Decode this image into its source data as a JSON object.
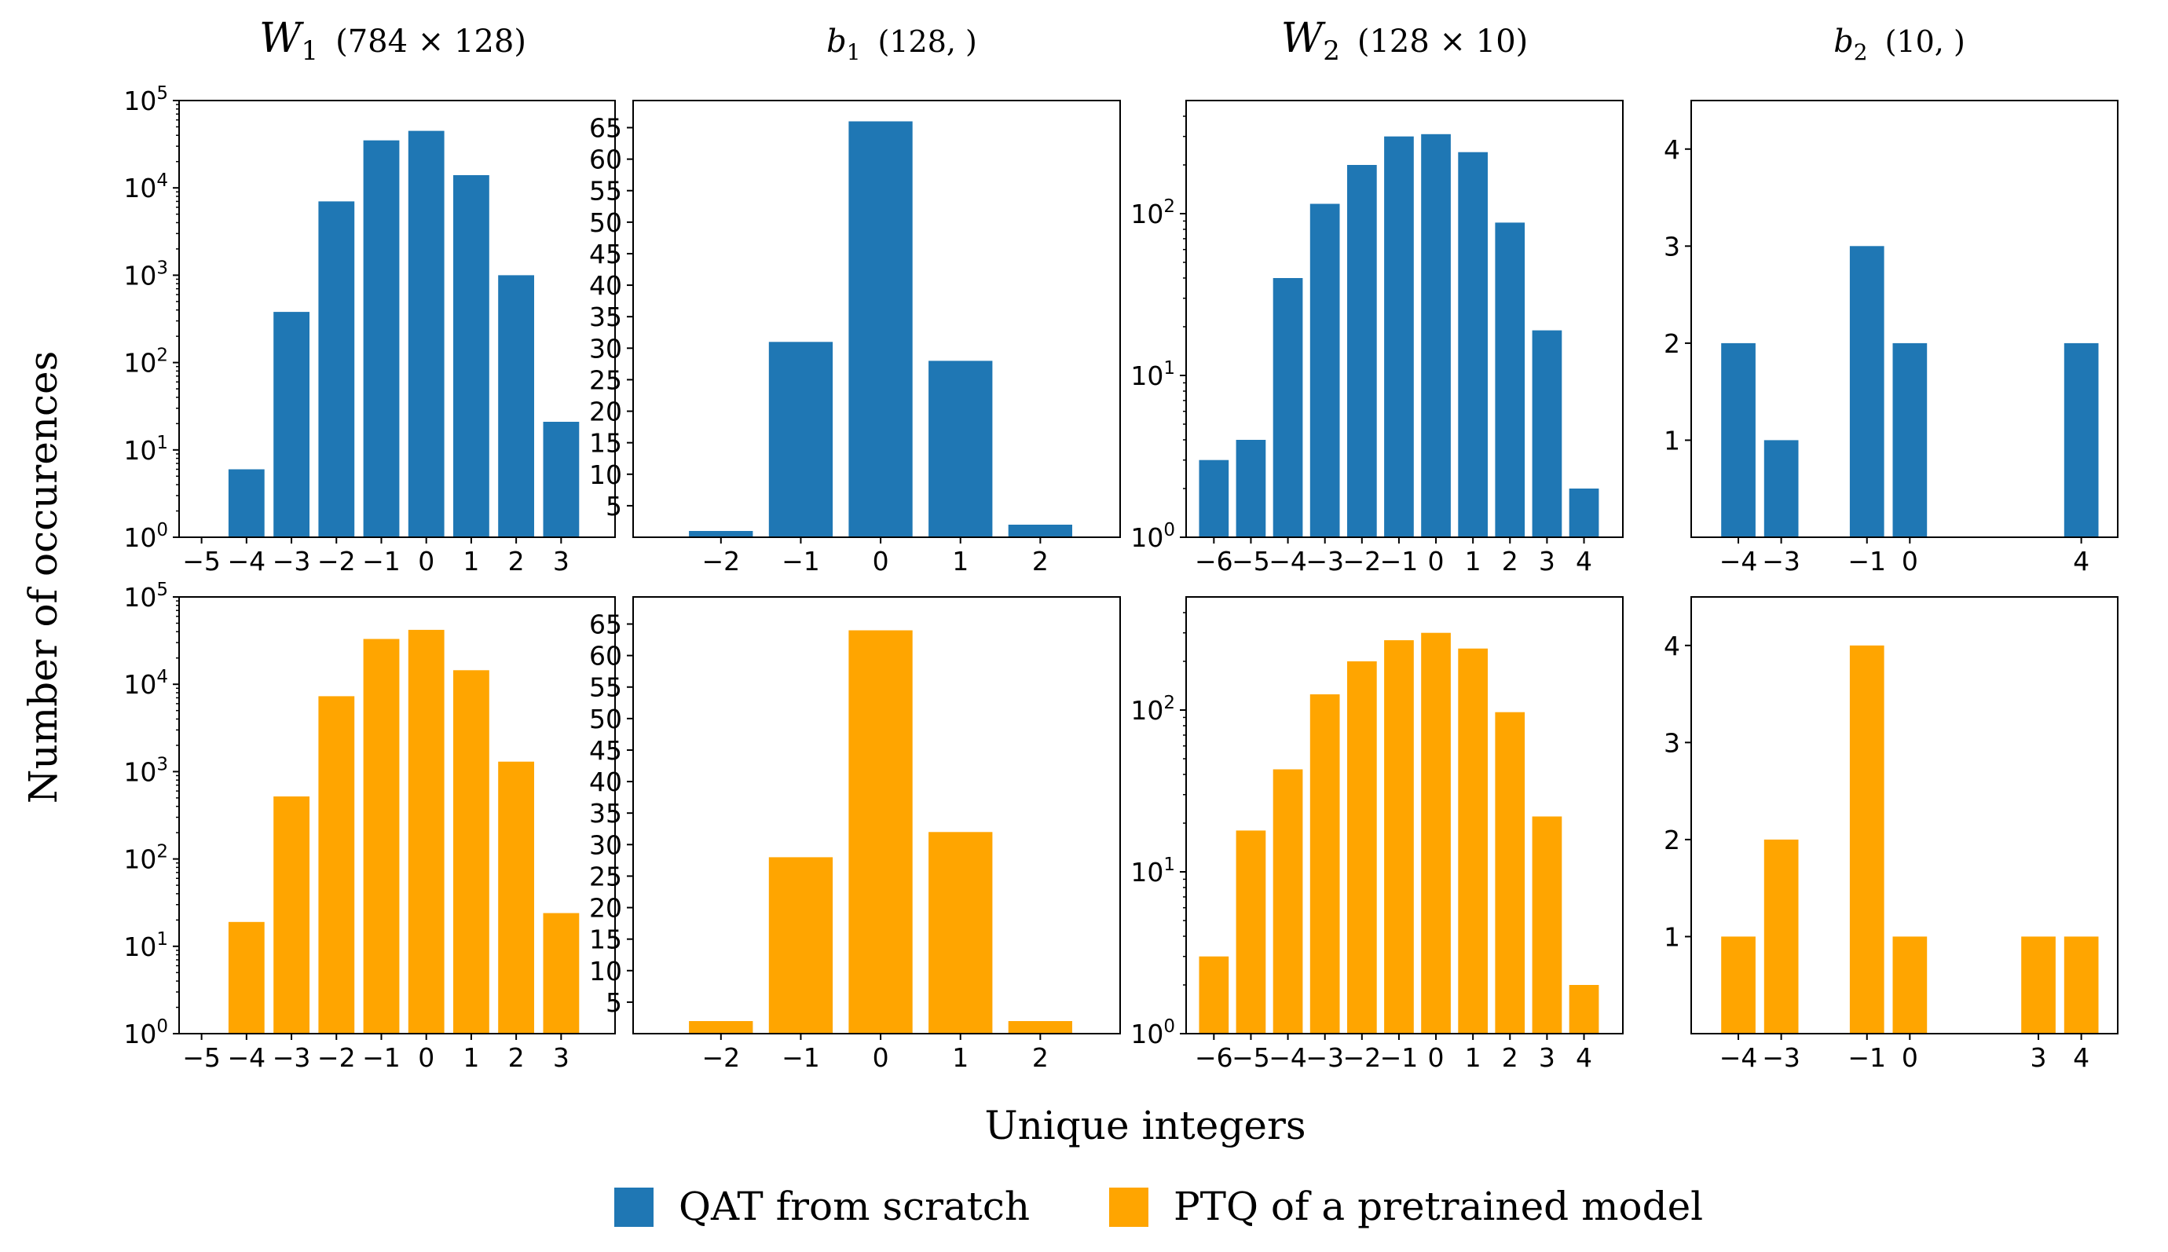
{
  "figure": {
    "ylabel": "Number of occurences",
    "xlabel": "Unique integers",
    "legend": [
      {
        "label": "QAT from scratch",
        "color": "#1f77b4"
      },
      {
        "label": "PTQ of a pretrained model",
        "color": "#ffa500"
      }
    ]
  },
  "columns": [
    {
      "title": {
        "var": "W",
        "sub": "1",
        "shape": "(784 × 128)",
        "big": true
      }
    },
    {
      "title": {
        "var": "b",
        "sub": "1",
        "shape": "(128, )",
        "big": false
      }
    },
    {
      "title": {
        "var": "W",
        "sub": "2",
        "shape": "(128 × 10)",
        "big": true
      }
    },
    {
      "title": {
        "var": "b",
        "sub": "2",
        "shape": "(10, )",
        "big": false
      }
    }
  ],
  "chart_data": [
    {
      "type": "bar",
      "panel": "W1-QAT",
      "row": 0,
      "col": 0,
      "series_name": "QAT from scratch",
      "color": "#1f77b4",
      "x": [
        -4,
        -3,
        -2,
        -1,
        0,
        1,
        2,
        3
      ],
      "values": [
        6,
        380,
        7000,
        35000,
        45000,
        14000,
        1000,
        21
      ],
      "xlim": [
        -5.5,
        4.2
      ],
      "ylim": [
        1,
        100000
      ],
      "yscale": "log",
      "xticks": [
        -5,
        -4,
        -3,
        -2,
        -1,
        0,
        1,
        2,
        3
      ],
      "yticks": [
        1,
        10,
        100,
        1000,
        10000,
        100000
      ]
    },
    {
      "type": "bar",
      "panel": "W1-PTQ",
      "row": 1,
      "col": 0,
      "series_name": "PTQ of a pretrained model",
      "color": "#ffa500",
      "x": [
        -4,
        -3,
        -2,
        -1,
        0,
        1,
        2,
        3
      ],
      "values": [
        19,
        520,
        7300,
        33000,
        42000,
        14500,
        1300,
        24
      ],
      "xlim": [
        -5.5,
        4.2
      ],
      "ylim": [
        1,
        100000
      ],
      "yscale": "log",
      "xticks": [
        -5,
        -4,
        -3,
        -2,
        -1,
        0,
        1,
        2,
        3
      ],
      "yticks": [
        1,
        10,
        100,
        1000,
        10000,
        100000
      ]
    },
    {
      "type": "bar",
      "panel": "b1-QAT",
      "row": 0,
      "col": 1,
      "series_name": "QAT from scratch",
      "color": "#1f77b4",
      "x": [
        -2,
        -1,
        0,
        1,
        2
      ],
      "values": [
        1,
        31,
        66,
        28,
        2
      ],
      "xlim": [
        -3.1,
        3.0
      ],
      "ylim": [
        0,
        69.3
      ],
      "yscale": "linear",
      "xticks": [
        -2,
        -1,
        0,
        1,
        2
      ],
      "yticks": [
        5,
        10,
        15,
        20,
        25,
        30,
        35,
        40,
        45,
        50,
        55,
        60,
        65
      ]
    },
    {
      "type": "bar",
      "panel": "b1-PTQ",
      "row": 1,
      "col": 1,
      "series_name": "PTQ of a pretrained model",
      "color": "#ffa500",
      "x": [
        -2,
        -1,
        0,
        1,
        2
      ],
      "values": [
        2,
        28,
        64,
        32,
        2
      ],
      "xlim": [
        -3.1,
        3.0
      ],
      "ylim": [
        0,
        69.3
      ],
      "yscale": "linear",
      "xticks": [
        -2,
        -1,
        0,
        1,
        2
      ],
      "yticks": [
        5,
        10,
        15,
        20,
        25,
        30,
        35,
        40,
        45,
        50,
        55,
        60,
        65
      ]
    },
    {
      "type": "bar",
      "panel": "W2-QAT",
      "row": 0,
      "col": 2,
      "series_name": "QAT from scratch",
      "color": "#1f77b4",
      "x": [
        -6,
        -5,
        -4,
        -3,
        -2,
        -1,
        0,
        1,
        2,
        3,
        4
      ],
      "values": [
        3,
        4,
        40,
        115,
        200,
        300,
        310,
        240,
        88,
        19,
        2
      ],
      "xlim": [
        -6.75,
        5.05
      ],
      "ylim": [
        1,
        500
      ],
      "yscale": "log",
      "xticks": [
        -6,
        -5,
        -4,
        -3,
        -2,
        -1,
        0,
        1,
        2,
        3,
        4
      ],
      "yticks": [
        1,
        10,
        100
      ]
    },
    {
      "type": "bar",
      "panel": "W2-PTQ",
      "row": 1,
      "col": 2,
      "series_name": "PTQ of a pretrained model",
      "color": "#ffa500",
      "x": [
        -6,
        -5,
        -4,
        -3,
        -2,
        -1,
        0,
        1,
        2,
        3,
        4
      ],
      "values": [
        3,
        18,
        43,
        125,
        200,
        270,
        300,
        240,
        97,
        22,
        2
      ],
      "xlim": [
        -6.75,
        5.05
      ],
      "ylim": [
        1,
        500
      ],
      "yscale": "log",
      "xticks": [
        -6,
        -5,
        -4,
        -3,
        -2,
        -1,
        0,
        1,
        2,
        3,
        4
      ],
      "yticks": [
        1,
        10,
        100
      ]
    },
    {
      "type": "bar",
      "panel": "b2-QAT",
      "row": 0,
      "col": 3,
      "series_name": "QAT from scratch",
      "color": "#1f77b4",
      "x": [
        -4,
        -3,
        -1,
        0,
        4
      ],
      "values": [
        2,
        1,
        3,
        2,
        2
      ],
      "xlim": [
        -5.1,
        4.85
      ],
      "ylim": [
        0,
        4.5
      ],
      "yscale": "linear",
      "xticks": [
        -4,
        -3,
        -1,
        0,
        4
      ],
      "yticks": [
        1,
        2,
        3,
        4
      ]
    },
    {
      "type": "bar",
      "panel": "b2-PTQ",
      "row": 1,
      "col": 3,
      "series_name": "PTQ of a pretrained model",
      "color": "#ffa500",
      "x": [
        -4,
        -3,
        -1,
        0,
        3,
        4
      ],
      "values": [
        1,
        2,
        4,
        1,
        1,
        1
      ],
      "xlim": [
        -5.1,
        4.85
      ],
      "ylim": [
        0,
        4.5
      ],
      "yscale": "linear",
      "xticks": [
        -4,
        -3,
        -1,
        0,
        3,
        4
      ],
      "yticks": [
        1,
        2,
        3,
        4
      ]
    }
  ]
}
